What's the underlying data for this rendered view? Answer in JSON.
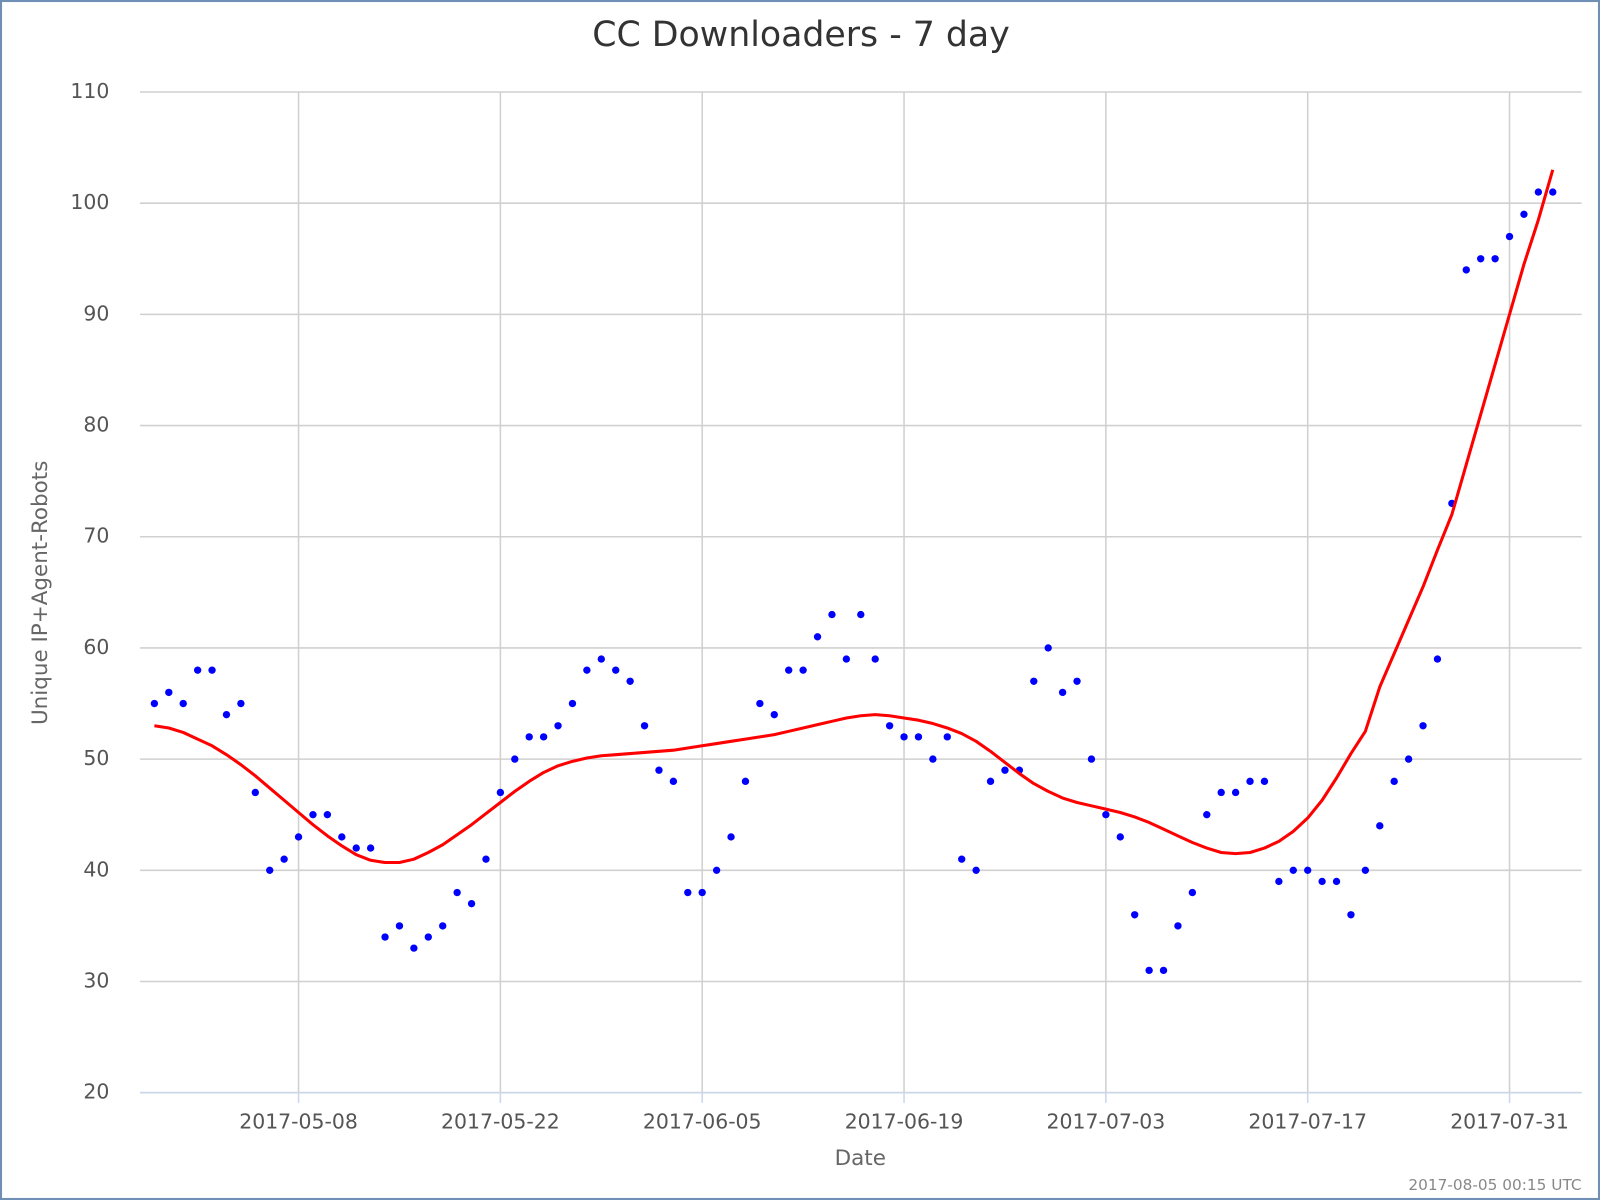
{
  "chart_data": {
    "type": "scatter",
    "title": "CC Downloaders - 7 day",
    "x_label": "Date",
    "y_label": "Unique IP+Agent-Robots",
    "annotation": "2017-08-05 00:15 UTC",
    "x": [
      "2017-04-28",
      "2017-04-29",
      "2017-04-30",
      "2017-05-01",
      "2017-05-02",
      "2017-05-03",
      "2017-05-04",
      "2017-05-05",
      "2017-05-06",
      "2017-05-07",
      "2017-05-08",
      "2017-05-09",
      "2017-05-10",
      "2017-05-11",
      "2017-05-12",
      "2017-05-13",
      "2017-05-14",
      "2017-05-15",
      "2017-05-16",
      "2017-05-17",
      "2017-05-18",
      "2017-05-19",
      "2017-05-20",
      "2017-05-21",
      "2017-05-22",
      "2017-05-23",
      "2017-05-24",
      "2017-05-25",
      "2017-05-26",
      "2017-05-27",
      "2017-05-28",
      "2017-05-29",
      "2017-05-30",
      "2017-05-31",
      "2017-06-01",
      "2017-06-02",
      "2017-06-03",
      "2017-06-04",
      "2017-06-05",
      "2017-06-06",
      "2017-06-07",
      "2017-06-08",
      "2017-06-09",
      "2017-06-10",
      "2017-06-11",
      "2017-06-12",
      "2017-06-13",
      "2017-06-14",
      "2017-06-15",
      "2017-06-16",
      "2017-06-17",
      "2017-06-18",
      "2017-06-19",
      "2017-06-20",
      "2017-06-21",
      "2017-06-22",
      "2017-06-23",
      "2017-06-24",
      "2017-06-25",
      "2017-06-26",
      "2017-06-27",
      "2017-06-28",
      "2017-06-29",
      "2017-06-30",
      "2017-07-01",
      "2017-07-02",
      "2017-07-03",
      "2017-07-04",
      "2017-07-05",
      "2017-07-06",
      "2017-07-07",
      "2017-07-08",
      "2017-07-09",
      "2017-07-10",
      "2017-07-11",
      "2017-07-12",
      "2017-07-13",
      "2017-07-14",
      "2017-07-15",
      "2017-07-16",
      "2017-07-17",
      "2017-07-18",
      "2017-07-19",
      "2017-07-20",
      "2017-07-21",
      "2017-07-22",
      "2017-07-23",
      "2017-07-24",
      "2017-07-25",
      "2017-07-26",
      "2017-07-27",
      "2017-07-28",
      "2017-07-29",
      "2017-07-30",
      "2017-07-31",
      "2017-08-01",
      "2017-08-02",
      "2017-08-03"
    ],
    "series": [
      {
        "type": "scatter",
        "color": "#0000ff",
        "values": [
          55,
          56,
          55,
          58,
          58,
          54,
          55,
          47,
          40,
          41,
          43,
          45,
          45,
          43,
          42,
          42,
          34,
          35,
          33,
          34,
          35,
          38,
          37,
          41,
          47,
          50,
          52,
          52,
          53,
          55,
          58,
          59,
          58,
          57,
          53,
          49,
          48,
          38,
          38,
          40,
          43,
          48,
          55,
          54,
          58,
          58,
          61,
          63,
          59,
          63,
          59,
          53,
          52,
          52,
          50,
          52,
          41,
          40,
          48,
          49,
          49,
          57,
          60,
          56,
          57,
          50,
          45,
          43,
          36,
          31,
          31,
          35,
          38,
          45,
          47,
          47,
          48,
          48,
          39,
          40,
          40,
          39,
          39,
          36,
          40,
          44,
          48,
          50,
          53,
          59,
          73,
          94,
          95,
          95,
          97,
          99,
          101,
          101
        ]
      },
      {
        "type": "line",
        "color": "#ff0000",
        "values": [
          53,
          52.8,
          52.4,
          51.8,
          51.2,
          50.4,
          49.5,
          48.5,
          47.4,
          46.3,
          45.2,
          44.1,
          43.1,
          42.2,
          41.4,
          40.9,
          40.7,
          40.7,
          41,
          41.6,
          42.3,
          43.2,
          44.1,
          45.1,
          46.1,
          47.1,
          48,
          48.8,
          49.4,
          49.8,
          50.1,
          50.3,
          50.4,
          50.5,
          50.6,
          50.7,
          50.8,
          51,
          51.2,
          51.4,
          51.6,
          51.8,
          52,
          52.2,
          52.5,
          52.8,
          53.1,
          53.4,
          53.7,
          53.9,
          54,
          53.9,
          53.7,
          53.5,
          53.2,
          52.8,
          52.3,
          51.6,
          50.7,
          49.7,
          48.7,
          47.8,
          47.1,
          46.5,
          46.1,
          45.8,
          45.5,
          45.2,
          44.8,
          44.3,
          43.7,
          43.1,
          42.5,
          42,
          41.6,
          41.5,
          41.6,
          42,
          42.6,
          43.5,
          44.7,
          46.3,
          48.3,
          50.5,
          52.5,
          56.5,
          59.5,
          62.5,
          65.5,
          68.8,
          72,
          76.5,
          81,
          85.5,
          90,
          94.5,
          98.5,
          103
        ]
      }
    ],
    "xlim": [
      "2017-04-27",
      "2017-08-05"
    ],
    "xticks": [
      "2017-05-08",
      "2017-05-22",
      "2017-06-05",
      "2017-06-19",
      "2017-07-03",
      "2017-07-17",
      "2017-07-31"
    ],
    "ylim": [
      20,
      110
    ],
    "yticks": [
      20,
      30,
      40,
      50,
      60,
      70,
      80,
      90,
      100,
      110
    ],
    "grid": true
  }
}
